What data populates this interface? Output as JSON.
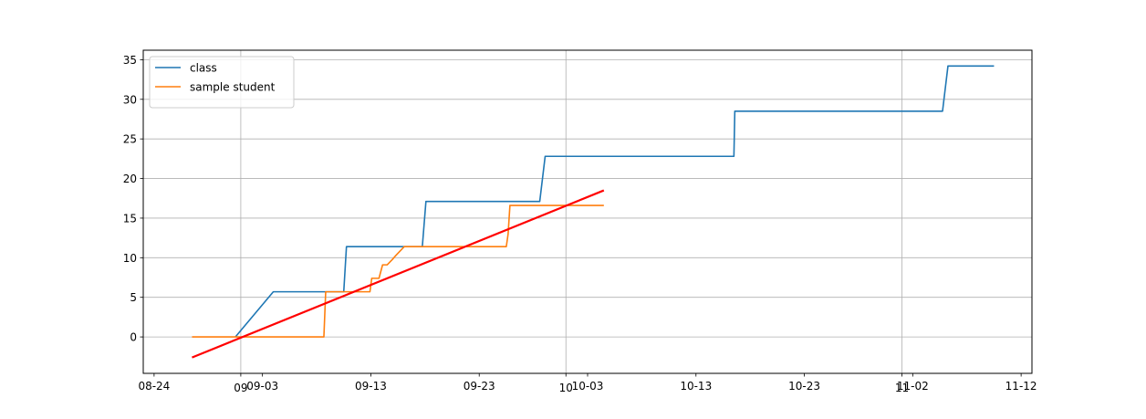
{
  "chart_data": {
    "type": "line",
    "title": "",
    "xlabel": "",
    "ylabel": "",
    "grid": true,
    "legend_position": "top-left",
    "x_domain": [
      "2024-08-23",
      "2024-11-13"
    ],
    "ylim": [
      -4.6,
      36.2
    ],
    "y_ticks": [
      0,
      5,
      10,
      15,
      20,
      25,
      30,
      35
    ],
    "x_ticks": [
      {
        "date": "2024-08-24",
        "label": "08-24"
      },
      {
        "date": "2024-09-03",
        "label": "09-03"
      },
      {
        "date": "2024-09-13",
        "label": "09-13"
      },
      {
        "date": "2024-09-23",
        "label": "09-23"
      },
      {
        "date": "2024-10-03",
        "label": "10-03"
      },
      {
        "date": "2024-10-13",
        "label": "10-13"
      },
      {
        "date": "2024-10-23",
        "label": "10-23"
      },
      {
        "date": "2024-11-02",
        "label": "11-02"
      },
      {
        "date": "2024-11-12",
        "label": "11-12"
      }
    ],
    "x_major_ticks": [
      {
        "date": "2024-09-01",
        "label": "09"
      },
      {
        "date": "2024-10-01",
        "label": "10"
      },
      {
        "date": "2024-11-01",
        "label": "11"
      }
    ],
    "series": [
      {
        "name": "class",
        "color": "#1f77b4",
        "points": [
          [
            "2024-08-31T12:00",
            0
          ],
          [
            "2024-09-04T00:00",
            5.7
          ],
          [
            "2024-09-10T12:00",
            5.7
          ],
          [
            "2024-09-10T18:00",
            11.4
          ],
          [
            "2024-09-17T18:00",
            11.4
          ],
          [
            "2024-09-18T02:00",
            17.1
          ],
          [
            "2024-09-28T14:00",
            17.1
          ],
          [
            "2024-09-29T02:00",
            22.8
          ],
          [
            "2024-10-16T12:00",
            22.8
          ],
          [
            "2024-10-16T14:00",
            28.5
          ],
          [
            "2024-11-04T18:00",
            28.5
          ],
          [
            "2024-11-05T06:00",
            34.2
          ],
          [
            "2024-11-09T12:00",
            34.2
          ]
        ]
      },
      {
        "name": "sample student",
        "color": "#ff7f0e",
        "points": [
          [
            "2024-08-27T12:00",
            0
          ],
          [
            "2024-09-08T16:00",
            0
          ],
          [
            "2024-09-08T20:00",
            5.7
          ],
          [
            "2024-09-12T22:00",
            5.7
          ],
          [
            "2024-09-13T02:00",
            7.4
          ],
          [
            "2024-09-13T18:00",
            7.4
          ],
          [
            "2024-09-14T02:00",
            9.1
          ],
          [
            "2024-09-14T12:00",
            9.1
          ],
          [
            "2024-09-15T00:00",
            9.8
          ],
          [
            "2024-09-15T06:00",
            10.2
          ],
          [
            "2024-09-16T02:00",
            11.4
          ],
          [
            "2024-09-25T12:00",
            11.4
          ],
          [
            "2024-09-25T16:00",
            13.0
          ],
          [
            "2024-09-25T20:00",
            16.6
          ],
          [
            "2024-10-04T12:00",
            16.6
          ]
        ]
      },
      {
        "name": "",
        "color": "#ff0000",
        "points": [
          [
            "2024-08-27T12:00",
            -2.6
          ],
          [
            "2024-10-04T12:00",
            18.5
          ]
        ]
      }
    ]
  }
}
